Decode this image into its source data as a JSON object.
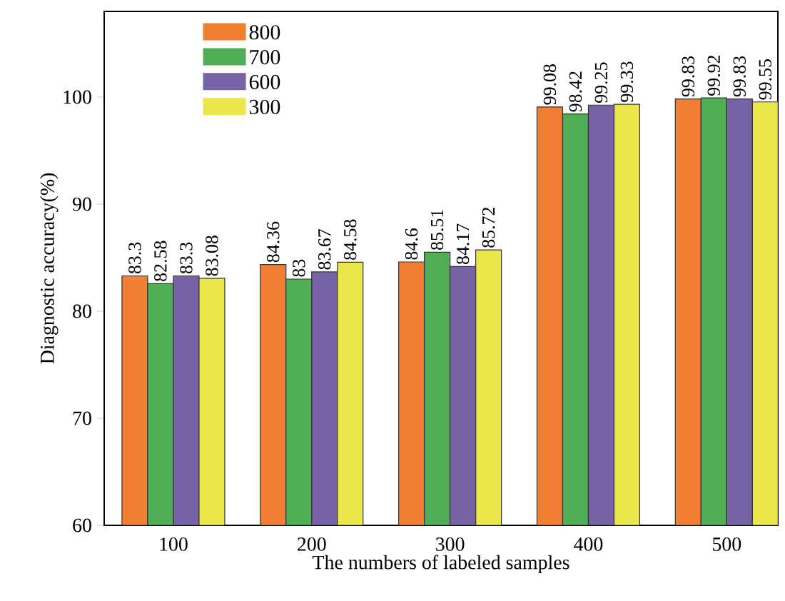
{
  "chart_data": {
    "type": "bar",
    "xlabel": "The numbers of labeled samples",
    "ylabel": "Diagnostic accuracy(%)",
    "categories": [
      "100",
      "200",
      "300",
      "400",
      "500"
    ],
    "series": [
      {
        "name": "800",
        "color": "#f07f32",
        "values": [
          83.3,
          84.36,
          84.6,
          99.08,
          99.83
        ],
        "value_labels": [
          "83.3",
          "84.36",
          "84.6",
          "99.08",
          "99.83"
        ]
      },
      {
        "name": "700",
        "color": "#4fae55",
        "values": [
          82.58,
          83,
          85.51,
          98.42,
          99.92
        ],
        "value_labels": [
          "82.58",
          "83",
          "85.51",
          "98.42",
          "99.92"
        ]
      },
      {
        "name": "600",
        "color": "#7762a6",
        "values": [
          83.3,
          83.67,
          84.17,
          99.25,
          99.83
        ],
        "value_labels": [
          "83.3",
          "83.67",
          "84.17",
          "99.25",
          "99.83"
        ]
      },
      {
        "name": "300",
        "color": "#ebe64a",
        "values": [
          83.08,
          84.58,
          85.72,
          99.33,
          99.55
        ],
        "value_labels": [
          "83.08",
          "84.58",
          "85.72",
          "99.33",
          "99.55"
        ]
      }
    ],
    "ylim": [
      60,
      108
    ],
    "yticks": [
      60,
      70,
      80,
      90,
      100
    ],
    "legend": "top left",
    "grid": false
  }
}
